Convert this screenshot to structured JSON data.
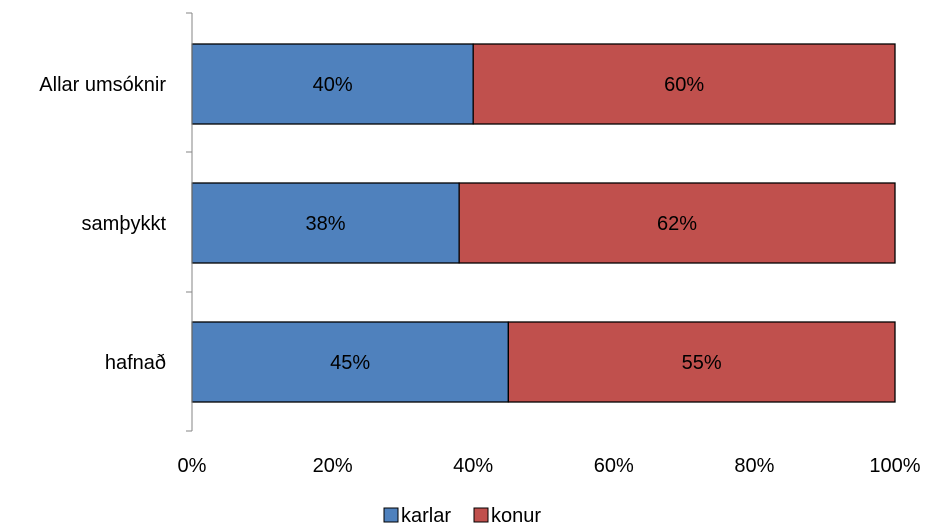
{
  "chart_data": {
    "type": "bar",
    "orientation": "horizontal",
    "stacked": true,
    "percent": true,
    "title": "",
    "xlabel": "",
    "ylabel": "",
    "categories": [
      "Allar umsóknir",
      "samþykkt",
      "hafnað"
    ],
    "series": [
      {
        "name": "karlar",
        "values": [
          40,
          38,
          45
        ],
        "labels": [
          "40%",
          "38%",
          "45%"
        ],
        "color": "#4F81BD"
      },
      {
        "name": "konur",
        "values": [
          60,
          62,
          55
        ],
        "labels": [
          "60%",
          "62%",
          "55%"
        ],
        "color": "#C0504D"
      }
    ],
    "xlim": [
      0,
      100
    ],
    "xticks": [
      "0%",
      "20%",
      "40%",
      "60%",
      "80%",
      "100%"
    ],
    "grid": false,
    "legend": "bottom"
  }
}
